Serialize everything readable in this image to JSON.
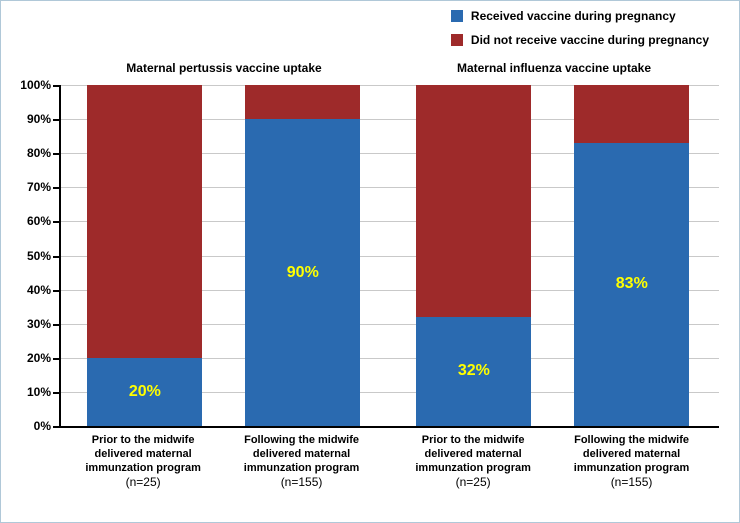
{
  "chart": {
    "type": "stacked-bar",
    "background_color": "#ffffff",
    "border_color": "#b0c8d8",
    "axis_color": "#000000",
    "grid_color": "#c9c9c9",
    "ylim": [
      0,
      100
    ],
    "ytick_step": 10,
    "y_tick_labels": [
      "0%",
      "10%",
      "20%",
      "30%",
      "40%",
      "50%",
      "60%",
      "70%",
      "80%",
      "90%",
      "100%"
    ],
    "value_label_color": "#ffff00",
    "value_label_fontsize": 16,
    "series": [
      {
        "key": "received",
        "label": "Received  vaccine during pregnancy",
        "color": "#2a6ab0"
      },
      {
        "key": "not_received",
        "label": "Did not receive vaccine during pregnancy",
        "color": "#9e2a2a"
      }
    ],
    "panels": [
      {
        "title": "Maternal pertussis vaccine uptake"
      },
      {
        "title": "Maternal influenza vaccine uptake"
      }
    ],
    "bars": [
      {
        "panel": 0,
        "x_lines": [
          "Prior to the midwife",
          "delivered maternal",
          "immunzation program"
        ],
        "n_label": "(n=25)",
        "received": 20,
        "not_received": 80,
        "show_value_on": "received",
        "value_text": "20%",
        "left_pct": 4.0,
        "width_pct": 17.5
      },
      {
        "panel": 0,
        "x_lines": [
          "Following the midwife",
          "delivered maternal",
          "immunzation program"
        ],
        "n_label": "(n=155)",
        "received": 90,
        "not_received": 10,
        "show_value_on": "received",
        "value_text": "90%",
        "left_pct": 28.0,
        "width_pct": 17.5
      },
      {
        "panel": 1,
        "x_lines": [
          "Prior to the midwife",
          "delivered maternal",
          "immunzation program"
        ],
        "n_label": "(n=25)",
        "received": 32,
        "not_received": 68,
        "show_value_on": "received",
        "value_text": "32%",
        "left_pct": 54.0,
        "width_pct": 17.5
      },
      {
        "panel": 1,
        "x_lines": [
          "Following the midwife",
          "delivered maternal",
          "immunzation program"
        ],
        "n_label": "(n=155)",
        "received": 83,
        "not_received": 17,
        "show_value_on": "received",
        "value_text": "83%",
        "left_pct": 78.0,
        "width_pct": 17.5
      }
    ]
  }
}
